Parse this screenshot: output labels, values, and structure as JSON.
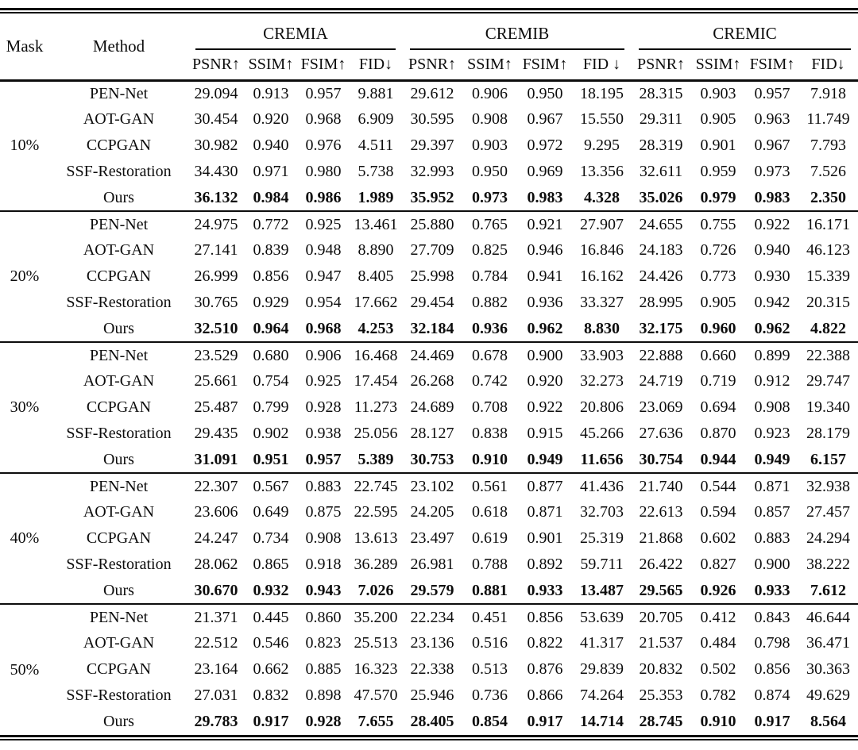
{
  "chart_data": {
    "type": "table",
    "corner_headers": [
      "Mask",
      "Method"
    ],
    "column_groups": [
      {
        "label": "CREMIA",
        "metrics": [
          "PSNR↑",
          "SSIM↑",
          "FSIM↑",
          "FID↓"
        ]
      },
      {
        "label": "CREMIB",
        "metrics": [
          "PSNR↑",
          "SSIM↑",
          "FSIM↑",
          "FID ↓"
        ]
      },
      {
        "label": "CREMIC",
        "metrics": [
          "PSNR↑",
          "SSIM↑",
          "FSIM↑",
          "FID↓"
        ]
      }
    ],
    "row_groups": [
      {
        "mask": "10%",
        "rows": [
          {
            "method": "PEN-Net",
            "bold": false,
            "values": [
              "29.094",
              "0.913",
              "0.957",
              "9.881",
              "29.612",
              "0.906",
              "0.950",
              "18.195",
              "28.315",
              "0.903",
              "0.957",
              "7.918"
            ]
          },
          {
            "method": "AOT-GAN",
            "bold": false,
            "values": [
              "30.454",
              "0.920",
              "0.968",
              "6.909",
              "30.595",
              "0.908",
              "0.967",
              "15.550",
              "29.311",
              "0.905",
              "0.963",
              "11.749"
            ]
          },
          {
            "method": "CCPGAN",
            "bold": false,
            "values": [
              "30.982",
              "0.940",
              "0.976",
              "4.511",
              "29.397",
              "0.903",
              "0.972",
              "9.295",
              "28.319",
              "0.901",
              "0.967",
              "7.793"
            ]
          },
          {
            "method": "SSF-Restoration",
            "bold": false,
            "values": [
              "34.430",
              "0.971",
              "0.980",
              "5.738",
              "32.993",
              "0.950",
              "0.969",
              "13.356",
              "32.611",
              "0.959",
              "0.973",
              "7.526"
            ]
          },
          {
            "method": "Ours",
            "bold": true,
            "values": [
              "36.132",
              "0.984",
              "0.986",
              "1.989",
              "35.952",
              "0.973",
              "0.983",
              "4.328",
              "35.026",
              "0.979",
              "0.983",
              "2.350"
            ]
          }
        ]
      },
      {
        "mask": "20%",
        "rows": [
          {
            "method": "PEN-Net",
            "bold": false,
            "values": [
              "24.975",
              "0.772",
              "0.925",
              "13.461",
              "25.880",
              "0.765",
              "0.921",
              "27.907",
              "24.655",
              "0.755",
              "0.922",
              "16.171"
            ]
          },
          {
            "method": "AOT-GAN",
            "bold": false,
            "values": [
              "27.141",
              "0.839",
              "0.948",
              "8.890",
              "27.709",
              "0.825",
              "0.946",
              "16.846",
              "24.183",
              "0.726",
              "0.940",
              "46.123"
            ]
          },
          {
            "method": "CCPGAN",
            "bold": false,
            "values": [
              "26.999",
              "0.856",
              "0.947",
              "8.405",
              "25.998",
              "0.784",
              "0.941",
              "16.162",
              "24.426",
              "0.773",
              "0.930",
              "15.339"
            ]
          },
          {
            "method": "SSF-Restoration",
            "bold": false,
            "values": [
              "30.765",
              "0.929",
              "0.954",
              "17.662",
              "29.454",
              "0.882",
              "0.936",
              "33.327",
              "28.995",
              "0.905",
              "0.942",
              "20.315"
            ]
          },
          {
            "method": "Ours",
            "bold": true,
            "values": [
              "32.510",
              "0.964",
              "0.968",
              "4.253",
              "32.184",
              "0.936",
              "0.962",
              "8.830",
              "32.175",
              "0.960",
              "0.962",
              "4.822"
            ]
          }
        ]
      },
      {
        "mask": "30%",
        "rows": [
          {
            "method": "PEN-Net",
            "bold": false,
            "values": [
              "23.529",
              "0.680",
              "0.906",
              "16.468",
              "24.469",
              "0.678",
              "0.900",
              "33.903",
              "22.888",
              "0.660",
              "0.899",
              "22.388"
            ]
          },
          {
            "method": "AOT-GAN",
            "bold": false,
            "values": [
              "25.661",
              "0.754",
              "0.925",
              "17.454",
              "26.268",
              "0.742",
              "0.920",
              "32.273",
              "24.719",
              "0.719",
              "0.912",
              "29.747"
            ]
          },
          {
            "method": "CCPGAN",
            "bold": false,
            "values": [
              "25.487",
              "0.799",
              "0.928",
              "11.273",
              "24.689",
              "0.708",
              "0.922",
              "20.806",
              "23.069",
              "0.694",
              "0.908",
              "19.340"
            ]
          },
          {
            "method": "SSF-Restoration",
            "bold": false,
            "values": [
              "29.435",
              "0.902",
              "0.938",
              "25.056",
              "28.127",
              "0.838",
              "0.915",
              "45.266",
              "27.636",
              "0.870",
              "0.923",
              "28.179"
            ]
          },
          {
            "method": "Ours",
            "bold": true,
            "values": [
              "31.091",
              "0.951",
              "0.957",
              "5.389",
              "30.753",
              "0.910",
              "0.949",
              "11.656",
              "30.754",
              "0.944",
              "0.949",
              "6.157"
            ]
          }
        ]
      },
      {
        "mask": "40%",
        "rows": [
          {
            "method": "PEN-Net",
            "bold": false,
            "values": [
              "22.307",
              "0.567",
              "0.883",
              "22.745",
              "23.102",
              "0.561",
              "0.877",
              "41.436",
              "21.740",
              "0.544",
              "0.871",
              "32.938"
            ]
          },
          {
            "method": "AOT-GAN",
            "bold": false,
            "values": [
              "23.606",
              "0.649",
              "0.875",
              "22.595",
              "24.205",
              "0.618",
              "0.871",
              "32.703",
              "22.613",
              "0.594",
              "0.857",
              "27.457"
            ]
          },
          {
            "method": "CCPGAN",
            "bold": false,
            "values": [
              "24.247",
              "0.734",
              "0.908",
              "13.613",
              "23.497",
              "0.619",
              "0.901",
              "25.319",
              "21.868",
              "0.602",
              "0.883",
              "24.294"
            ]
          },
          {
            "method": "SSF-Restoration",
            "bold": false,
            "values": [
              "28.062",
              "0.865",
              "0.918",
              "36.289",
              "26.981",
              "0.788",
              "0.892",
              "59.711",
              "26.422",
              "0.827",
              "0.900",
              "38.222"
            ]
          },
          {
            "method": "Ours",
            "bold": true,
            "values": [
              "30.670",
              "0.932",
              "0.943",
              "7.026",
              "29.579",
              "0.881",
              "0.933",
              "13.487",
              "29.565",
              "0.926",
              "0.933",
              "7.612"
            ]
          }
        ]
      },
      {
        "mask": "50%",
        "rows": [
          {
            "method": "PEN-Net",
            "bold": false,
            "values": [
              "21.371",
              "0.445",
              "0.860",
              "35.200",
              "22.234",
              "0.451",
              "0.856",
              "53.639",
              "20.705",
              "0.412",
              "0.843",
              "46.644"
            ]
          },
          {
            "method": "AOT-GAN",
            "bold": false,
            "values": [
              "22.512",
              "0.546",
              "0.823",
              "25.513",
              "23.136",
              "0.516",
              "0.822",
              "41.317",
              "21.537",
              "0.484",
              "0.798",
              "36.471"
            ]
          },
          {
            "method": "CCPGAN",
            "bold": false,
            "values": [
              "23.164",
              "0.662",
              "0.885",
              "16.323",
              "22.338",
              "0.513",
              "0.876",
              "29.839",
              "20.832",
              "0.502",
              "0.856",
              "30.363"
            ]
          },
          {
            "method": "SSF-Restoration",
            "bold": false,
            "values": [
              "27.031",
              "0.832",
              "0.898",
              "47.570",
              "25.946",
              "0.736",
              "0.866",
              "74.264",
              "25.353",
              "0.782",
              "0.874",
              "49.629"
            ]
          },
          {
            "method": "Ours",
            "bold": true,
            "values": [
              "29.783",
              "0.917",
              "0.928",
              "7.655",
              "28.405",
              "0.854",
              "0.917",
              "14.714",
              "28.745",
              "0.910",
              "0.917",
              "8.564"
            ]
          }
        ]
      }
    ]
  }
}
